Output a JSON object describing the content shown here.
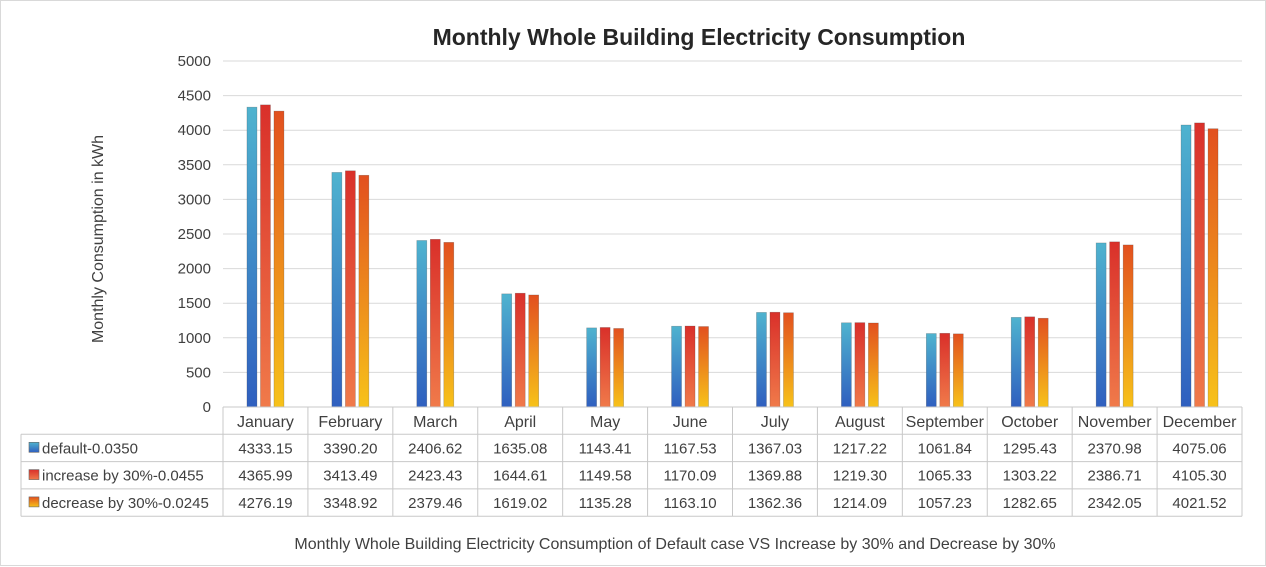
{
  "chart_data": {
    "type": "bar",
    "title": "Monthly Whole Building Electricity Consumption",
    "ylabel": "Monthly Consumption in kWh",
    "xlabel": "Monthly Whole  Building Electricity Consumption of Default case VS Increase by 30% and Decrease by 30%",
    "ylim": [
      0,
      5000
    ],
    "yticks": [
      0,
      500,
      1000,
      1500,
      2000,
      2500,
      3000,
      3500,
      4000,
      4500,
      5000
    ],
    "categories": [
      "January",
      "February",
      "March",
      "April",
      "May",
      "June",
      "July",
      "August",
      "September",
      "October",
      "November",
      "December"
    ],
    "series": [
      {
        "name": "default-0.0350",
        "color_top": "#4fb3cf",
        "color_bottom": "#2f5fbf",
        "values": [
          4333.15,
          3390.2,
          2406.62,
          1635.08,
          1143.41,
          1167.53,
          1367.03,
          1217.22,
          1061.84,
          1295.43,
          2370.98,
          4075.06
        ]
      },
      {
        "name": "increase by 30%-0.0455",
        "color_top": "#d9302a",
        "color_bottom": "#f07a4a",
        "values": [
          4365.99,
          3413.49,
          2423.43,
          1644.61,
          1149.58,
          1170.09,
          1369.88,
          1219.3,
          1065.33,
          1303.22,
          2386.71,
          4105.3
        ]
      },
      {
        "name": "decrease by 30%-0.0245",
        "color_top": "#e2501f",
        "color_bottom": "#f7c21a",
        "values": [
          4276.19,
          3348.92,
          2379.46,
          1619.02,
          1135.28,
          1163.1,
          1362.36,
          1214.09,
          1057.23,
          1282.65,
          2342.05,
          4021.52
        ]
      }
    ],
    "table_values": [
      [
        "4333.15",
        "3390.20",
        "2406.62",
        "1635.08",
        "1143.41",
        "1167.53",
        "1367.03",
        "1217.22",
        "1061.84",
        "1295.43",
        "2370.98",
        "4075.06"
      ],
      [
        "4365.99",
        "3413.49",
        "2423.43",
        "1644.61",
        "1149.58",
        "1170.09",
        "1369.88",
        "1219.30",
        "1065.33",
        "1303.22",
        "2386.71",
        "4105.30"
      ],
      [
        "4276.19",
        "3348.92",
        "2379.46",
        "1619.02",
        "1135.28",
        "1163.10",
        "1362.36",
        "1214.09",
        "1057.23",
        "1282.65",
        "2342.05",
        "4021.52"
      ]
    ],
    "grid": true
  }
}
